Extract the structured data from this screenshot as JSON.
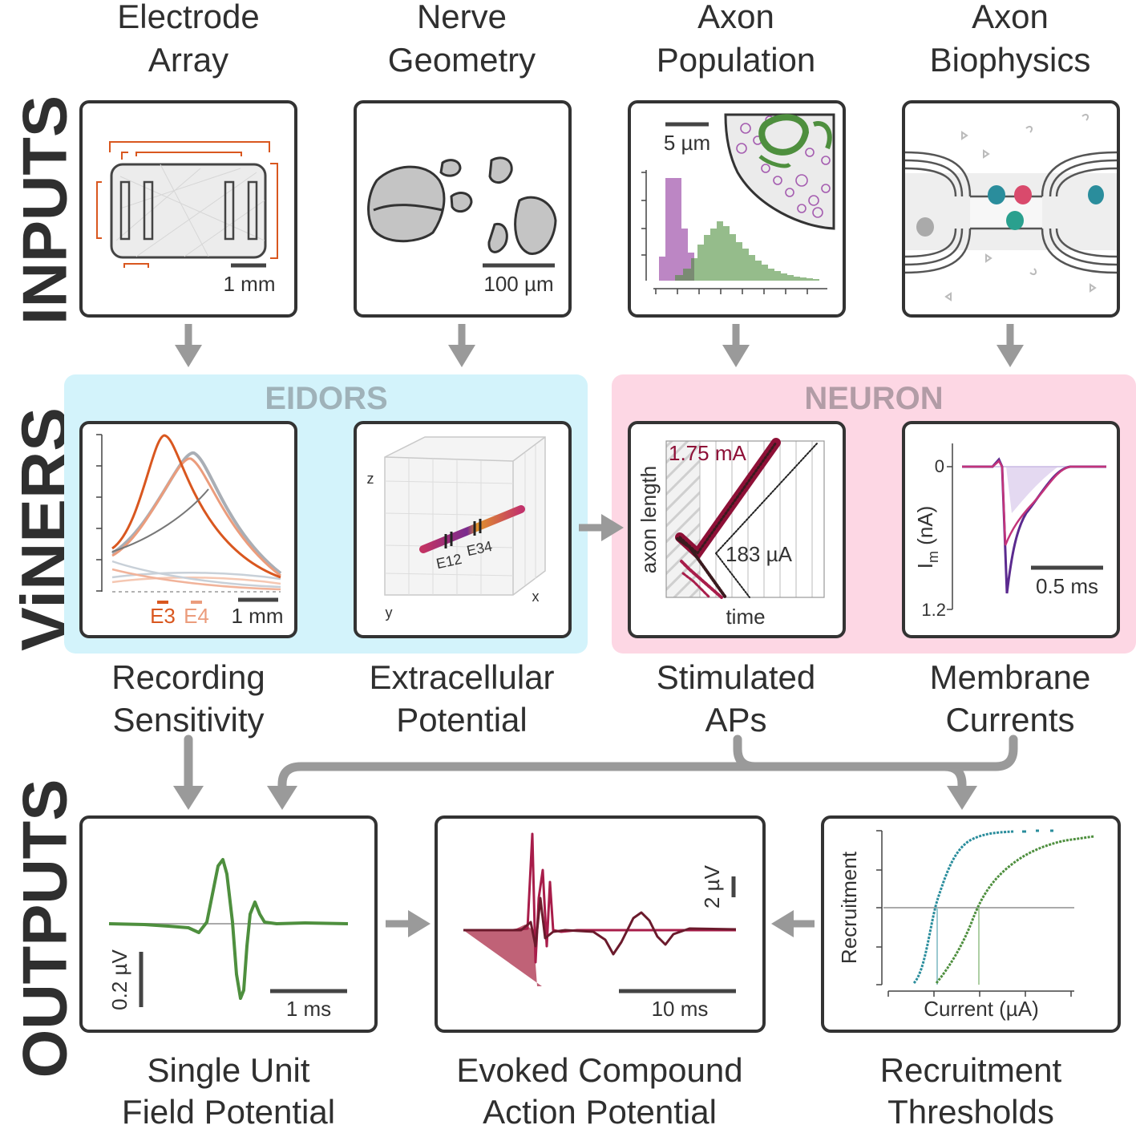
{
  "row_labels": {
    "inputs": "INPUTS",
    "viners": "ViNERS",
    "outputs": "OUTPUTS"
  },
  "engines": {
    "eidors": "EIDORS",
    "neuron": "NEURON"
  },
  "inputs": [
    {
      "line1": "Electrode",
      "line2": "Array",
      "scale": "1 mm"
    },
    {
      "line1": "Nerve",
      "line2": "Geometry",
      "scale": "100 µm"
    },
    {
      "line1": "Axon",
      "line2": "Population",
      "scale": "5 µm"
    },
    {
      "line1": "Axon",
      "line2": "Biophysics"
    }
  ],
  "viners": [
    {
      "line1": "Recording",
      "line2": "Sensitivity",
      "legend_a": "E3",
      "legend_b": "E4",
      "scale": "1 mm"
    },
    {
      "line1": "Extracellular",
      "line2": "Potential",
      "axis_z": "z",
      "axis_y": "y",
      "axis_x": "x",
      "lbl_a": "E12",
      "lbl_b": "E34"
    },
    {
      "line1": "Stimulated",
      "line2": "APs",
      "ylabel": "axon length",
      "xlabel": "time",
      "high": "1.75 mA",
      "low": "183 µA"
    },
    {
      "line1": "Membrane",
      "line2": "Currents",
      "ylabel": "I",
      "ylabel_sub": "m",
      "ylabel_unit": " (nA)",
      "tick_top": "0",
      "tick_bot": "1.2",
      "scale": "0.5 ms"
    }
  ],
  "outputs": [
    {
      "line1": "Single Unit",
      "line2": "Field Potential",
      "yscale": "0.2 µV",
      "xscale": "1 ms"
    },
    {
      "line1": "Evoked Compound",
      "line2": "Action Potential",
      "yscale": "2 µV",
      "xscale": "10 ms"
    },
    {
      "line1": "Recruitment",
      "line2": "Thresholds",
      "ylabel": "Recruitment",
      "xlabel": "Current (µA)"
    }
  ],
  "colors": {
    "eidors_bg": "#d3f3fb",
    "neuron_bg": "#fdd7e4",
    "arrow": "#9a9a9a",
    "orange": "#d9571f",
    "light_orange": "#eb9c7c",
    "green": "#4e8f3e",
    "purple": "#a55db0",
    "crimson": "#8e1037",
    "teal": "#2a8d9c"
  }
}
